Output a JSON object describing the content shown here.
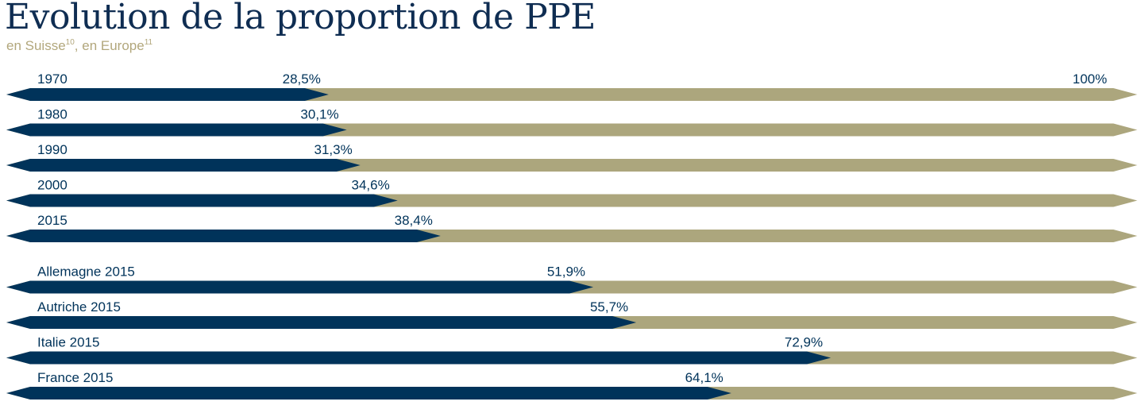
{
  "title": "Evolution de la proportion de PPE",
  "subtitle": {
    "part1": "en Suisse",
    "note1": "10",
    "part2": ", en Europe",
    "note2": "11"
  },
  "colors": {
    "primary": "#00335a",
    "secondary": "#aca67d",
    "title": "#0f2d52",
    "subtitle": "#b2a77c"
  },
  "chart_data": {
    "type": "bar",
    "orientation": "horizontal",
    "stacked": true,
    "xlim": [
      0,
      100
    ],
    "categories": [
      "1970",
      "1980",
      "1990",
      "2000",
      "2015",
      "Allemagne 2015",
      "Autriche 2015",
      "Italie 2015",
      "France 2015"
    ],
    "values": [
      28.5,
      30.1,
      31.3,
      34.6,
      38.4,
      51.9,
      55.7,
      72.9,
      64.1
    ],
    "value_labels": [
      "28,5%",
      "30,1%",
      "31,3%",
      "34,6%",
      "38,4%",
      "51,9%",
      "55,7%",
      "72,9%",
      "64,1%"
    ],
    "total": 100,
    "total_label": "100%",
    "groups": [
      {
        "label": "en Suisse",
        "categories": [
          "1970",
          "1980",
          "1990",
          "2000",
          "2015"
        ]
      },
      {
        "label": "en Europe",
        "categories": [
          "Allemagne 2015",
          "Autriche 2015",
          "Italie 2015",
          "France 2015"
        ]
      }
    ],
    "grid": false,
    "legend": "none"
  }
}
